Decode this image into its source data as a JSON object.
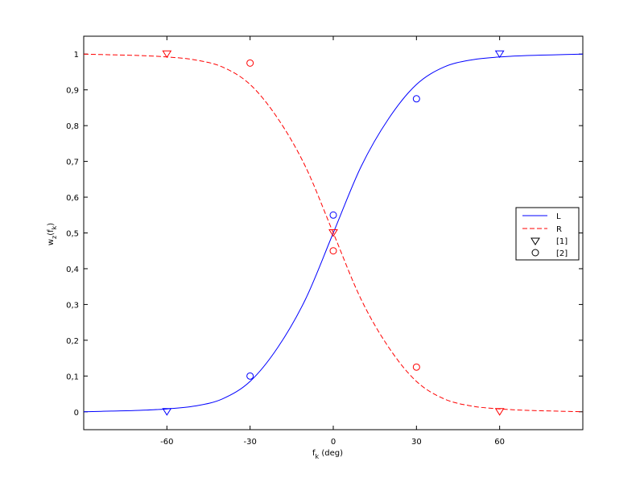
{
  "colors": {
    "blue": "#0000ff",
    "red": "#ff0000",
    "black": "#000000",
    "background": "#ffffff"
  },
  "chart_data": {
    "type": "line",
    "title": "",
    "xlabel": {
      "base": "f",
      "sub": "k",
      "rest": " (deg)"
    },
    "ylabel": {
      "w": "w",
      "z": "z",
      "f": "(f",
      "k": "k",
      "close": ")"
    },
    "xlim": [
      -90,
      90
    ],
    "ylim": [
      -0.05,
      1.05
    ],
    "xticks": [
      -60,
      -30,
      0,
      30,
      60
    ],
    "xtick_labels": [
      "-60",
      "-30",
      "0",
      "30",
      "60"
    ],
    "yticks": [
      0,
      0.1,
      0.2,
      0.3,
      0.4,
      0.5,
      0.6,
      0.7,
      0.8,
      0.9,
      1
    ],
    "ytick_labels": [
      "0",
      "0,1",
      "0,2",
      "0,3",
      "0,4",
      "0,5",
      "0,6",
      "0,7",
      "0,8",
      "0,9",
      "1"
    ],
    "grid": false,
    "legend_position": "right-middle",
    "series": [
      {
        "name": "L",
        "style": "solid",
        "color": "#0000ff",
        "x": [
          -90,
          -80,
          -70,
          -60,
          -50,
          -40,
          -30,
          -20,
          -10,
          0,
          10,
          20,
          30,
          40,
          50,
          60,
          70,
          80,
          90
        ],
        "y": [
          0.0,
          0.002,
          0.004,
          0.008,
          0.016,
          0.036,
          0.085,
          0.18,
          0.315,
          0.5,
          0.685,
          0.82,
          0.915,
          0.964,
          0.984,
          0.992,
          0.996,
          0.998,
          1.0
        ]
      },
      {
        "name": "R",
        "style": "dashed",
        "color": "#ff0000",
        "x": [
          -90,
          -80,
          -70,
          -60,
          -50,
          -40,
          -30,
          -20,
          -10,
          0,
          10,
          20,
          30,
          40,
          50,
          60,
          70,
          80,
          90
        ],
        "y": [
          1.0,
          0.998,
          0.996,
          0.992,
          0.984,
          0.964,
          0.915,
          0.82,
          0.685,
          0.5,
          0.315,
          0.18,
          0.085,
          0.036,
          0.016,
          0.008,
          0.004,
          0.002,
          0.0
        ]
      }
    ],
    "markers": [
      {
        "name": "[1]",
        "marker": "triangle-down",
        "points": [
          {
            "x": -60,
            "y": 1.0,
            "color": "#ff0000"
          },
          {
            "x": 0,
            "y": 0.5,
            "color": "#ff0000"
          },
          {
            "x": 60,
            "y": 1.0,
            "color": "#0000ff"
          },
          {
            "x": -60,
            "y": 0.0,
            "color": "#0000ff"
          },
          {
            "x": 60,
            "y": 0.0,
            "color": "#ff0000"
          }
        ]
      },
      {
        "name": "[2]",
        "marker": "circle",
        "points": [
          {
            "x": -30,
            "y": 0.975,
            "color": "#ff0000"
          },
          {
            "x": -30,
            "y": 0.1,
            "color": "#0000ff"
          },
          {
            "x": 0,
            "y": 0.55,
            "color": "#0000ff"
          },
          {
            "x": 0,
            "y": 0.45,
            "color": "#ff0000"
          },
          {
            "x": 30,
            "y": 0.875,
            "color": "#0000ff"
          },
          {
            "x": 30,
            "y": 0.125,
            "color": "#ff0000"
          }
        ]
      }
    ],
    "legend": [
      {
        "label": "L",
        "kind": "line-solid",
        "color": "#0000ff"
      },
      {
        "label": "R",
        "kind": "line-dashed",
        "color": "#ff0000"
      },
      {
        "label": "[1]",
        "kind": "triangle-down",
        "color": "#000000"
      },
      {
        "label": "[2]",
        "kind": "circle",
        "color": "#000000"
      }
    ]
  }
}
